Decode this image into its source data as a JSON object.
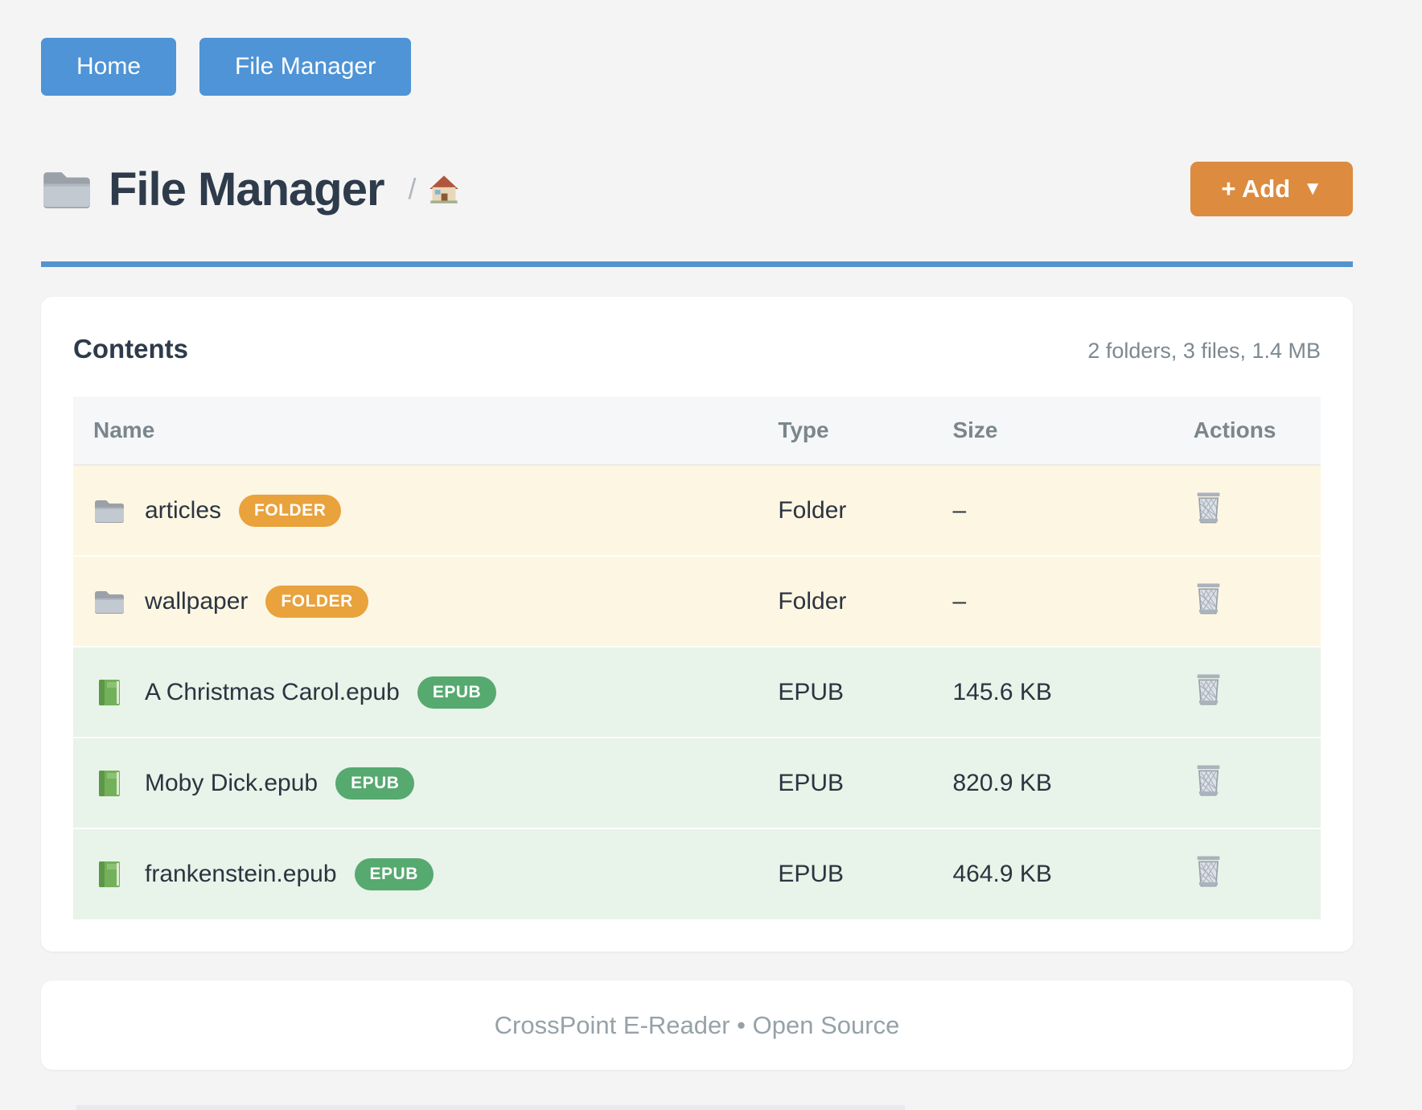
{
  "nav": {
    "buttons": [
      {
        "label": "Home"
      },
      {
        "label": "File Manager"
      }
    ]
  },
  "header": {
    "icon": "folder",
    "title": "File Manager",
    "breadcrumb_separator": "/",
    "breadcrumb_home_icon": "house",
    "add_button": {
      "label": "+ Add",
      "caret": "▼"
    }
  },
  "contents": {
    "title": "Contents",
    "summary": "2 folders, 3 files, 1.4 MB",
    "columns": [
      "Name",
      "Type",
      "Size",
      "Actions"
    ],
    "rows": [
      {
        "icon": "folder",
        "name": "articles",
        "badge": "FOLDER",
        "badge_color": "#e9a23c",
        "row_bg": "#fdf6e2",
        "type": "Folder",
        "size": "–",
        "action_icon": "trash"
      },
      {
        "icon": "folder",
        "name": "wallpaper",
        "badge": "FOLDER",
        "badge_color": "#e9a23c",
        "row_bg": "#fdf6e2",
        "type": "Folder",
        "size": "–",
        "action_icon": "trash"
      },
      {
        "icon": "book",
        "name": "A Christmas Carol.epub",
        "badge": "EPUB",
        "badge_color": "#56a96f",
        "row_bg": "#e8f3e9",
        "type": "EPUB",
        "size": "145.6 KB",
        "action_icon": "trash"
      },
      {
        "icon": "book",
        "name": "Moby Dick.epub",
        "badge": "EPUB",
        "badge_color": "#56a96f",
        "row_bg": "#e8f3e9",
        "type": "EPUB",
        "size": "820.9 KB",
        "action_icon": "trash"
      },
      {
        "icon": "book",
        "name": "frankenstein.epub",
        "badge": "EPUB",
        "badge_color": "#56a96f",
        "row_bg": "#e8f3e9",
        "type": "EPUB",
        "size": "464.9 KB",
        "action_icon": "trash"
      }
    ]
  },
  "footer": {
    "text": "CrossPoint E-Reader • Open Source"
  },
  "colors": {
    "page_bg": "#f4f4f5",
    "nav_button": "#4e94d6",
    "divider": "#5593cf",
    "add_button": "#dd8b3e",
    "heading": "#2e3b4a",
    "muted_text": "#7d8990",
    "table_header_bg": "#f5f7f9",
    "folder_row_bg": "#fdf6e2",
    "epub_row_bg": "#e8f3e9",
    "folder_badge": "#e9a23c",
    "epub_badge": "#56a96f"
  }
}
